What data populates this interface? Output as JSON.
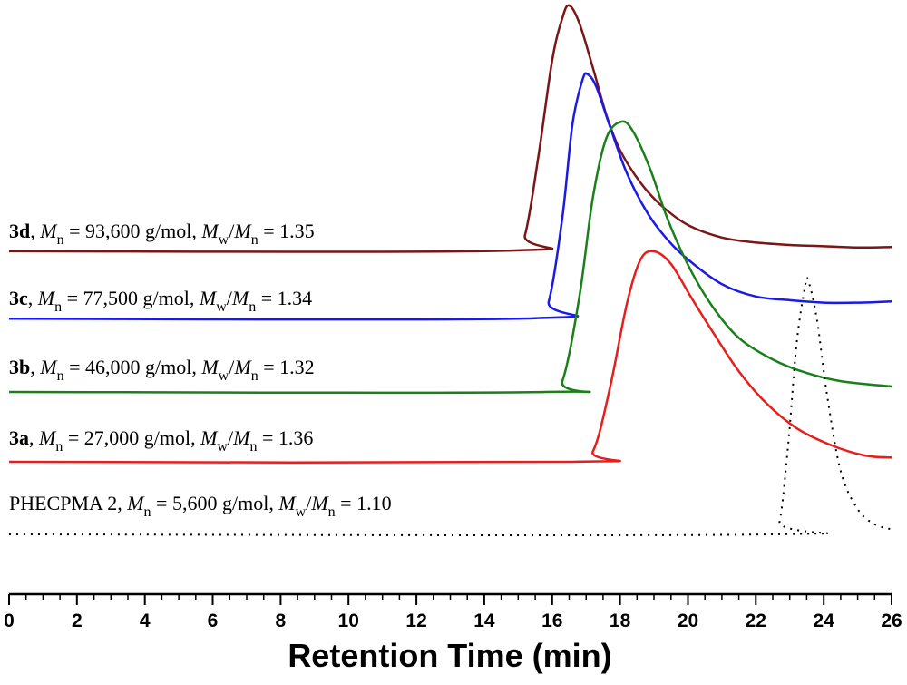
{
  "chart_data": {
    "type": "line",
    "title": "",
    "xlabel": "Retention Time (min)",
    "ylabel": "",
    "xlim": [
      0,
      26
    ],
    "xticks": [
      "0",
      "2",
      "4",
      "6",
      "8",
      "10",
      "12",
      "14",
      "16",
      "18",
      "20",
      "22",
      "24",
      "26"
    ],
    "grid": false,
    "legend": "inline labels at left above each trace",
    "series": [
      {
        "key": "3d",
        "color": "#7a1616",
        "style": "solid",
        "label": {
          "sample": "3d",
          "mn": "93,600 g/mol",
          "pdi": "1.35"
        },
        "baseline": 0.015,
        "points": [
          [
            0,
            0.015
          ],
          [
            14.8,
            0.018
          ],
          [
            15.2,
            0.08
          ],
          [
            15.6,
            0.4
          ],
          [
            16.0,
            0.78
          ],
          [
            16.3,
            0.95
          ],
          [
            16.5,
            1.0
          ],
          [
            16.8,
            0.93
          ],
          [
            17.2,
            0.75
          ],
          [
            17.6,
            0.56
          ],
          [
            18.0,
            0.42
          ],
          [
            18.6,
            0.29
          ],
          [
            19.2,
            0.2
          ],
          [
            20,
            0.12
          ],
          [
            21,
            0.07
          ],
          [
            22,
            0.05
          ],
          [
            23,
            0.04
          ],
          [
            24,
            0.035
          ],
          [
            25,
            0.03
          ],
          [
            26,
            0.032
          ]
        ]
      },
      {
        "key": "3c",
        "color": "#1a1ae6",
        "style": "solid",
        "label": {
          "sample": "3c",
          "mn": "77,500 g/mol",
          "pdi": "1.34"
        },
        "baseline": 0.01,
        "points": [
          [
            0,
            0.01
          ],
          [
            15.5,
            0.012
          ],
          [
            15.9,
            0.08
          ],
          [
            16.3,
            0.42
          ],
          [
            16.6,
            0.8
          ],
          [
            16.9,
            0.98
          ],
          [
            17.05,
            1.0
          ],
          [
            17.3,
            0.95
          ],
          [
            17.7,
            0.79
          ],
          [
            18.2,
            0.6
          ],
          [
            18.8,
            0.44
          ],
          [
            19.4,
            0.33
          ],
          [
            20,
            0.25
          ],
          [
            21,
            0.15
          ],
          [
            22,
            0.1
          ],
          [
            23,
            0.085
          ],
          [
            24,
            0.075
          ],
          [
            25,
            0.075
          ],
          [
            26,
            0.08
          ]
        ]
      },
      {
        "key": "3b",
        "color": "#1a801a",
        "style": "solid",
        "label": {
          "sample": "3b",
          "mn": "46,000 g/mol",
          "pdi": "1.32"
        },
        "baseline": 0.0,
        "points": [
          [
            0,
            0.0
          ],
          [
            15.8,
            0.0
          ],
          [
            16.3,
            0.04
          ],
          [
            16.8,
            0.35
          ],
          [
            17.2,
            0.72
          ],
          [
            17.6,
            0.94
          ],
          [
            18.05,
            1.0
          ],
          [
            18.4,
            0.96
          ],
          [
            18.9,
            0.82
          ],
          [
            19.4,
            0.64
          ],
          [
            20,
            0.47
          ],
          [
            20.7,
            0.32
          ],
          [
            21.5,
            0.2
          ],
          [
            22.5,
            0.12
          ],
          [
            23.5,
            0.07
          ],
          [
            24.5,
            0.04
          ],
          [
            26,
            0.02
          ]
        ]
      },
      {
        "key": "3a",
        "color": "#e61e1e",
        "style": "solid",
        "label": {
          "sample": "3a",
          "mn": "27,000 g/mol",
          "pdi": "1.36"
        },
        "baseline": 0.0,
        "points": [
          [
            0,
            0.0
          ],
          [
            16.6,
            0.0
          ],
          [
            17.2,
            0.05
          ],
          [
            17.7,
            0.35
          ],
          [
            18.2,
            0.75
          ],
          [
            18.6,
            0.96
          ],
          [
            19.0,
            1.0
          ],
          [
            19.5,
            0.94
          ],
          [
            20.1,
            0.78
          ],
          [
            20.8,
            0.6
          ],
          [
            21.5,
            0.43
          ],
          [
            22.3,
            0.28
          ],
          [
            23.2,
            0.16
          ],
          [
            24.2,
            0.08
          ],
          [
            25.2,
            0.03
          ],
          [
            26,
            0.02
          ]
        ]
      },
      {
        "key": "2",
        "color": "#000000",
        "style": "dotted",
        "label": {
          "sample": "PHECPMA 2",
          "mn": "5,600 g/mol",
          "pdi": "1.10"
        },
        "baseline": 0.0,
        "points": [
          [
            0,
            0.0
          ],
          [
            22.4,
            0.0
          ],
          [
            22.7,
            0.05
          ],
          [
            22.95,
            0.35
          ],
          [
            23.2,
            0.75
          ],
          [
            23.45,
            0.98
          ],
          [
            23.55,
            1.0
          ],
          [
            23.8,
            0.85
          ],
          [
            24.1,
            0.55
          ],
          [
            24.5,
            0.25
          ],
          [
            25,
            0.1
          ],
          [
            25.5,
            0.04
          ],
          [
            26,
            0.02
          ]
        ]
      }
    ]
  }
}
